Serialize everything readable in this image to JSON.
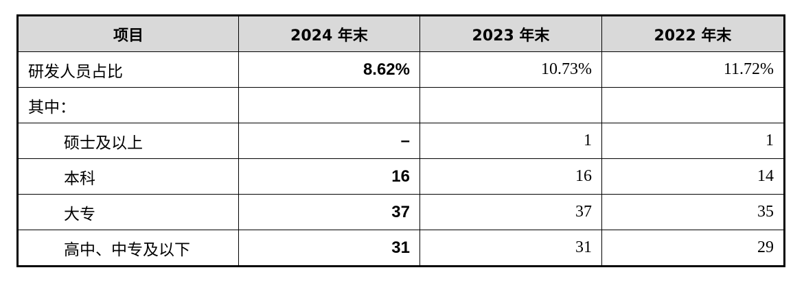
{
  "headers": [
    "项目",
    "2024 年末",
    "2023 年末",
    "2022 年末"
  ],
  "rows": [
    {
      "label": "研发人员占比",
      "indent": false,
      "values": [
        "8.62%",
        "10.73%",
        "11.72%"
      ]
    },
    {
      "label": "其中：",
      "indent": false,
      "values": [
        "",
        "",
        ""
      ]
    },
    {
      "label": "硕士及以上",
      "indent": true,
      "values": [
        "–",
        "1",
        "1"
      ]
    },
    {
      "label": "本科",
      "indent": true,
      "values": [
        "16",
        "16",
        "14"
      ]
    },
    {
      "label": "大专",
      "indent": true,
      "values": [
        "37",
        "37",
        "35"
      ]
    },
    {
      "label": "高中、中专及以下",
      "indent": true,
      "values": [
        "31",
        "31",
        "29"
      ]
    }
  ],
  "colors": {
    "header_bg": "#d9d9d9"
  }
}
